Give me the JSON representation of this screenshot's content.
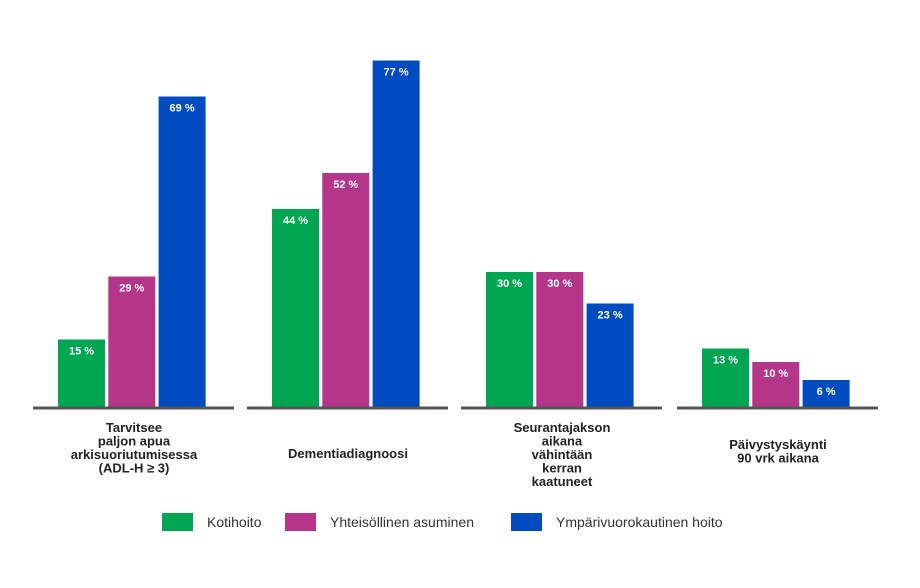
{
  "chart_data": {
    "type": "bar",
    "categories": [
      [
        "Tarvitsee",
        "paljon apua",
        "arkisuoriutumisessa",
        "(ADL-H ≥ 3)"
      ],
      [
        "Dementiadiagnoosi"
      ],
      [
        "Seurantajakson",
        "aikana",
        "vähintään",
        "kerran",
        "kaatuneet"
      ],
      [
        "Päivystyskäynti",
        "90 vrk aikana"
      ]
    ],
    "series": [
      {
        "name": "Kotihoito",
        "color": "#00a651",
        "values": [
          15,
          44,
          30,
          13
        ]
      },
      {
        "name": "Yhteisöllinen asuminen",
        "color": "#b5358a",
        "values": [
          29,
          52,
          30,
          10
        ]
      },
      {
        "name": "Ympärivuorokautinen hoito",
        "color": "#004bc0",
        "values": [
          69,
          77,
          23,
          6
        ]
      }
    ],
    "value_suffix": " %",
    "grid": false,
    "legend_position": "bottom",
    "axis_color": "#555555"
  }
}
